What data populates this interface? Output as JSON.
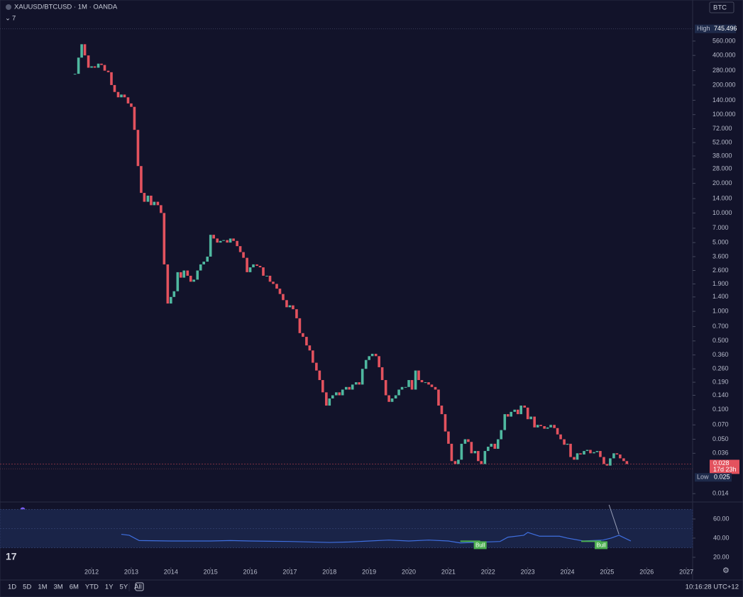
{
  "header": {
    "symbol": "XAUUSD/BTCUSD · 1M · OANDA",
    "indicators": "7",
    "currency": "BTC"
  },
  "chart_data": {
    "type": "candlestick",
    "up_color": "#4fb8a0",
    "down_color": "#e3525e",
    "log_scale": true,
    "xlim": [
      2009.69,
      2027.14
    ],
    "xticks": [
      2012,
      2013,
      2014,
      2015,
      2016,
      2017,
      2018,
      2019,
      2020,
      2021,
      2022,
      2023,
      2024,
      2025,
      2026,
      2027
    ],
    "ylim": [
      0.0119,
      920
    ],
    "yticks": [
      {
        "value": 560,
        "label": "560.000"
      },
      {
        "value": 400,
        "label": "400.000"
      },
      {
        "value": 280,
        "label": "280.000"
      },
      {
        "value": 200,
        "label": "200.000"
      },
      {
        "value": 140,
        "label": "140.000"
      },
      {
        "value": 100,
        "label": "100.000"
      },
      {
        "value": 72,
        "label": "72.000"
      },
      {
        "value": 52,
        "label": "52.000"
      },
      {
        "value": 38,
        "label": "38.000"
      },
      {
        "value": 28,
        "label": "28.000"
      },
      {
        "value": 20,
        "label": "20.000"
      },
      {
        "value": 14,
        "label": "14.000"
      },
      {
        "value": 10,
        "label": "10.000"
      },
      {
        "value": 7,
        "label": "7.000"
      },
      {
        "value": 5,
        "label": "5.000"
      },
      {
        "value": 3.6,
        "label": "3.600"
      },
      {
        "value": 2.6,
        "label": "2.600"
      },
      {
        "value": 1.9,
        "label": "1.900"
      },
      {
        "value": 1.4,
        "label": "1.400"
      },
      {
        "value": 1,
        "label": "1.000"
      },
      {
        "value": 0.7,
        "label": "0.700"
      },
      {
        "value": 0.5,
        "label": "0.500"
      },
      {
        "value": 0.36,
        "label": "0.360"
      },
      {
        "value": 0.26,
        "label": "0.260"
      },
      {
        "value": 0.19,
        "label": "0.190"
      },
      {
        "value": 0.14,
        "label": "0.140"
      },
      {
        "value": 0.1,
        "label": "0.100"
      },
      {
        "value": 0.07,
        "label": "0.070"
      },
      {
        "value": 0.05,
        "label": "0.050"
      },
      {
        "value": 0.036,
        "label": "0.036"
      },
      {
        "value": 0.014,
        "label": "0.014"
      }
    ],
    "x": [
      2011.58,
      2011.67,
      2011.75,
      2011.83,
      2011.92,
      2012.0,
      2012.08,
      2012.17,
      2012.25,
      2012.33,
      2012.42,
      2012.5,
      2012.58,
      2012.67,
      2012.75,
      2012.83,
      2012.92,
      2013.0,
      2013.08,
      2013.17,
      2013.25,
      2013.33,
      2013.42,
      2013.5,
      2013.58,
      2013.67,
      2013.75,
      2013.83,
      2013.92,
      2014.0,
      2014.08,
      2014.17,
      2014.25,
      2014.33,
      2014.42,
      2014.5,
      2014.58,
      2014.67,
      2014.75,
      2014.83,
      2014.92,
      2015.0,
      2015.08,
      2015.17,
      2015.25,
      2015.33,
      2015.42,
      2015.5,
      2015.58,
      2015.67,
      2015.75,
      2015.83,
      2015.92,
      2016.0,
      2016.08,
      2016.17,
      2016.25,
      2016.33,
      2016.42,
      2016.5,
      2016.58,
      2016.67,
      2016.75,
      2016.83,
      2016.92,
      2017.0,
      2017.08,
      2017.17,
      2017.25,
      2017.33,
      2017.42,
      2017.5,
      2017.58,
      2017.67,
      2017.75,
      2017.83,
      2017.92,
      2018.0,
      2018.08,
      2018.17,
      2018.25,
      2018.33,
      2018.42,
      2018.5,
      2018.58,
      2018.67,
      2018.75,
      2018.83,
      2018.92,
      2019.0,
      2019.08,
      2019.17,
      2019.25,
      2019.33,
      2019.42,
      2019.5,
      2019.58,
      2019.67,
      2019.75,
      2019.83,
      2019.92,
      2020.0,
      2020.08,
      2020.17,
      2020.25,
      2020.33,
      2020.42,
      2020.5,
      2020.58,
      2020.67,
      2020.75,
      2020.83,
      2020.92,
      2021.0,
      2021.08,
      2021.17,
      2021.25,
      2021.33,
      2021.42,
      2021.5,
      2021.58,
      2021.67,
      2021.75,
      2021.83,
      2021.92,
      2022.0,
      2022.08,
      2022.17,
      2022.25,
      2022.33,
      2022.42,
      2022.5,
      2022.58,
      2022.67,
      2022.75,
      2022.83,
      2022.92,
      2023.0,
      2023.08,
      2023.17,
      2023.25,
      2023.33,
      2023.42,
      2023.5,
      2023.58,
      2023.67,
      2023.75,
      2023.83,
      2023.92,
      2024.0,
      2024.08,
      2024.17,
      2024.25,
      2024.33,
      2024.42,
      2024.5,
      2024.58,
      2024.67,
      2024.75,
      2024.83,
      2024.92,
      2025.0,
      2025.08,
      2025.17,
      2025.25,
      2025.33,
      2025.42,
      2025.5
    ],
    "close": [
      260,
      380,
      520,
      400,
      300,
      310,
      300,
      330,
      320,
      280,
      270,
      200,
      170,
      150,
      160,
      150,
      130,
      120,
      70,
      30,
      16,
      13,
      15,
      12,
      13,
      12,
      10,
      3,
      1.2,
      1.4,
      1.6,
      2.5,
      2.2,
      2.6,
      2.3,
      2.0,
      2.1,
      2.6,
      3.0,
      3.2,
      3.6,
      6,
      5.5,
      5.0,
      5.2,
      5.3,
      5.0,
      5.5,
      5.2,
      4.6,
      4.0,
      3.5,
      2.5,
      2.8,
      3.0,
      2.9,
      2.8,
      2.3,
      2.3,
      2.0,
      1.9,
      1.7,
      1.5,
      1.3,
      1.1,
      1.15,
      1.05,
      0.85,
      0.6,
      0.55,
      0.45,
      0.4,
      0.3,
      0.25,
      0.2,
      0.15,
      0.11,
      0.13,
      0.14,
      0.15,
      0.14,
      0.16,
      0.17,
      0.16,
      0.18,
      0.19,
      0.18,
      0.26,
      0.32,
      0.35,
      0.37,
      0.35,
      0.27,
      0.2,
      0.14,
      0.12,
      0.13,
      0.14,
      0.16,
      0.17,
      0.17,
      0.2,
      0.16,
      0.25,
      0.2,
      0.19,
      0.19,
      0.18,
      0.17,
      0.16,
      0.11,
      0.09,
      0.06,
      0.045,
      0.03,
      0.028,
      0.031,
      0.045,
      0.05,
      0.047,
      0.036,
      0.038,
      0.03,
      0.028,
      0.038,
      0.042,
      0.045,
      0.04,
      0.05,
      0.062,
      0.09,
      0.085,
      0.095,
      0.1,
      0.09,
      0.11,
      0.105,
      0.08,
      0.085,
      0.066,
      0.07,
      0.068,
      0.064,
      0.066,
      0.07,
      0.065,
      0.056,
      0.05,
      0.044,
      0.045,
      0.033,
      0.031,
      0.036,
      0.035,
      0.038,
      0.039,
      0.036,
      0.037,
      0.038,
      0.033,
      0.028,
      0.027,
      0.032,
      0.036,
      0.035,
      0.032,
      0.03,
      0.028
    ],
    "high_label": "High",
    "high": {
      "value": 745.496,
      "label": "745.496"
    },
    "low_label": "Low",
    "low": {
      "value": 0.025,
      "label": "0.025"
    },
    "last": {
      "value": 0.028,
      "label": "0.028"
    },
    "countdown": "17d 23h",
    "rsi": {
      "color": "#3f6fe0",
      "ylim": [
        9.6,
        74.8
      ],
      "yticks": [
        {
          "value": 60,
          "label": "60.00"
        },
        {
          "value": 40,
          "label": "40.00"
        },
        {
          "value": 20,
          "label": "20.00"
        }
      ],
      "band": [
        30,
        70
      ],
      "midline": 50,
      "x": [
        2012.75,
        2012.95,
        2013.2,
        2014,
        2015,
        2015.5,
        2016,
        2017,
        2018,
        2018.5,
        2019,
        2019.5,
        2020,
        2020.5,
        2021,
        2021.3,
        2022.3,
        2022.5,
        2022.9,
        2023,
        2023.3,
        2023.8,
        2024,
        2024.4,
        2024.9,
        2025.1,
        2025.3,
        2025.6
      ],
      "values": [
        44,
        43,
        37.5,
        37,
        37,
        37.5,
        37,
        36.5,
        35.5,
        36,
        37,
        38,
        37,
        38,
        37,
        35,
        36.5,
        41,
        43,
        46,
        42,
        42,
        40,
        37,
        38,
        40,
        43,
        37
      ],
      "annotations": [
        {
          "text": "Bull",
          "x": 2021.8,
          "y": 33
        },
        {
          "text": "Bull",
          "x": 2024.85,
          "y": 33
        }
      ]
    }
  },
  "toolbar": {
    "ranges": [
      "1D",
      "5D",
      "1M",
      "3M",
      "6M",
      "YTD",
      "1Y",
      "5Y",
      "All"
    ],
    "clock": "10:16:28 UTC+12"
  }
}
